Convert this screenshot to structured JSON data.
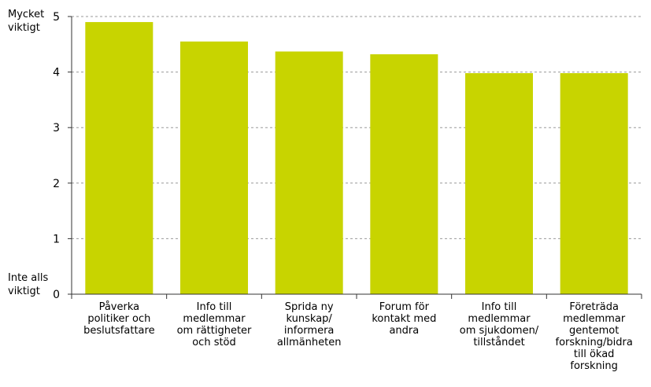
{
  "chart_data": {
    "type": "bar",
    "categories": [
      [
        "Påverka",
        "politiker och",
        "beslutsfattare"
      ],
      [
        "Info till",
        "medlemmar",
        "om rättigheter",
        "och stöd"
      ],
      [
        "Sprida ny",
        "kunskap/",
        "informera",
        "allmänheten"
      ],
      [
        "Forum för",
        "kontakt med",
        "andra"
      ],
      [
        "Info till",
        "medlemmar",
        "om sjukdomen/",
        "tillståndet"
      ],
      [
        "Företräda",
        "medlemmar",
        "gentemot",
        "forskning/bidra",
        "till ökad",
        "forskning"
      ]
    ],
    "values": [
      4.9,
      4.55,
      4.37,
      4.32,
      3.98,
      3.98
    ],
    "ylim": [
      0,
      5
    ],
    "yticks": [
      "0",
      "1",
      "2",
      "3",
      "4",
      "5"
    ],
    "y_top_label": [
      "Mycket",
      "viktigt"
    ],
    "y_bottom_label": [
      "Inte alls",
      "viktigt"
    ],
    "grid": "horizontal dashed",
    "colors": {
      "bar": "#c8d400",
      "grid": "#999999",
      "axis": "#333333"
    }
  }
}
